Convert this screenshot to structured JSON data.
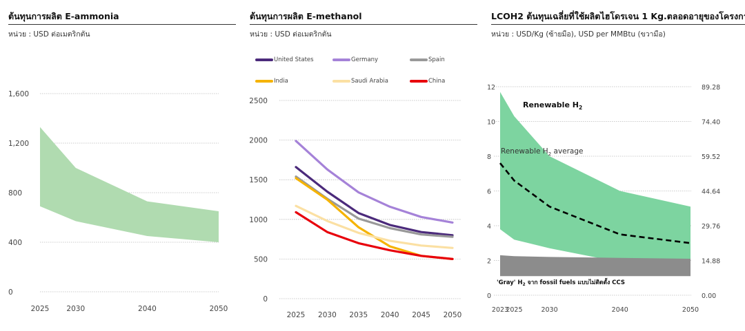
{
  "panels": [
    {
      "title": "ต้นทุนการผลิต E-ammonia",
      "unit": "หน่วย : USD ต่อเมตริกตัน"
    },
    {
      "title": "ต้นทุนการผลิต E-methanol",
      "unit": "หน่วย : USD ต่อเมตริกตัน"
    },
    {
      "title": "LCOH2 ต้นทุนเฉลี่ยที่ใช้ผลิตไฮโดรเจน 1 Kg.ตลอดอายุของโครงการ",
      "unit": "หน่วย : USD/Kg (ซ้ายมือ), USD per MMBtu (ขวามือ)"
    }
  ],
  "colors": {
    "ammonia_band": "#b0dbb0",
    "renewable_band": "#7dd4a0",
    "gray_band": "#8c8c8c",
    "grid": "#bbbbbb"
  },
  "chart_data": [
    {
      "type": "area",
      "title": "ต้นทุนการผลิต E-ammonia",
      "categories": [
        "2025",
        "2030",
        "2040",
        "2050"
      ],
      "x": [
        2025,
        2030,
        2040,
        2050
      ],
      "series": [
        {
          "name": "",
          "low": [
            690,
            570,
            450,
            400
          ],
          "high": [
            1330,
            1000,
            730,
            650
          ]
        }
      ],
      "yticks": [
        "0",
        "400",
        "800",
        "1,200",
        "1,600"
      ],
      "ylim": [
        0,
        1600
      ]
    },
    {
      "type": "line",
      "title": "ต้นทุนการผลิต E-methanol",
      "categories": [
        "2025",
        "2030",
        "2035",
        "2040",
        "2045",
        "2050"
      ],
      "x": [
        2025,
        2030,
        2035,
        2040,
        2045,
        2050
      ],
      "series": [
        {
          "name": "United States",
          "color": "#4b2a7b",
          "values": [
            1660,
            1350,
            1080,
            930,
            840,
            800
          ]
        },
        {
          "name": "Germany",
          "color": "#a582d8",
          "values": [
            1990,
            1630,
            1340,
            1160,
            1030,
            960
          ]
        },
        {
          "name": "Spain",
          "color": "#999999",
          "values": [
            1540,
            1260,
            1010,
            890,
            810,
            780
          ]
        },
        {
          "name": "India",
          "color": "#f5b300",
          "values": [
            1520,
            1250,
            900,
            660,
            540,
            500
          ]
        },
        {
          "name": "Saudi Arabia",
          "color": "#fbe0a3",
          "values": [
            1170,
            980,
            830,
            730,
            670,
            640
          ]
        },
        {
          "name": "China",
          "color": "#e8000b",
          "values": [
            1090,
            840,
            700,
            610,
            540,
            500
          ]
        }
      ],
      "yticks": [
        "0",
        "500",
        "1000",
        "1500",
        "2000",
        "2500"
      ],
      "ylim": [
        0,
        2500
      ],
      "legend": "top"
    },
    {
      "type": "area",
      "title": "LCOH2 ต้นทุนเฉลี่ยที่ใช้ผลิตไฮโดรเจน 1 Kg.ตลอดอายุของโครงการ",
      "categories": [
        "2023",
        "2025",
        "2030",
        "2040",
        "2050"
      ],
      "x": [
        2023,
        2025,
        2030,
        2040,
        2050
      ],
      "series": [
        {
          "name": "Renewable H₂",
          "low": [
            3.8,
            3.2,
            2.7,
            1.9,
            1.5
          ],
          "high": [
            11.7,
            10.3,
            8.0,
            6.0,
            5.1
          ]
        },
        {
          "name": "Renewable H₂ average",
          "values": [
            7.6,
            6.6,
            5.1,
            3.5,
            3.0
          ]
        },
        {
          "name": "'Gray' H₂ จาก fossil fuels แบบไม่ติดตั้ง CCS",
          "low": [
            1.1,
            1.1,
            1.1,
            1.1,
            1.1
          ],
          "high": [
            2.3,
            2.25,
            2.2,
            2.15,
            2.1
          ]
        }
      ],
      "yticks_left": [
        "0",
        "2",
        "4",
        "6",
        "8",
        "10",
        "12"
      ],
      "yticks_right": [
        "0.00",
        "14.88",
        "29.76",
        "44.64",
        "59.52",
        "74.40",
        "89.28"
      ],
      "ylim": [
        0,
        12
      ],
      "labels": {
        "renewable": "Renewable H",
        "renewable_avg": "Renewable H",
        "avg_suffix": " average",
        "gray_prefix": "'Gray' H",
        "gray_suffix": " จาก fossil fuels แบบไม่ติดตั้ง CCS",
        "sub": "2"
      }
    }
  ]
}
